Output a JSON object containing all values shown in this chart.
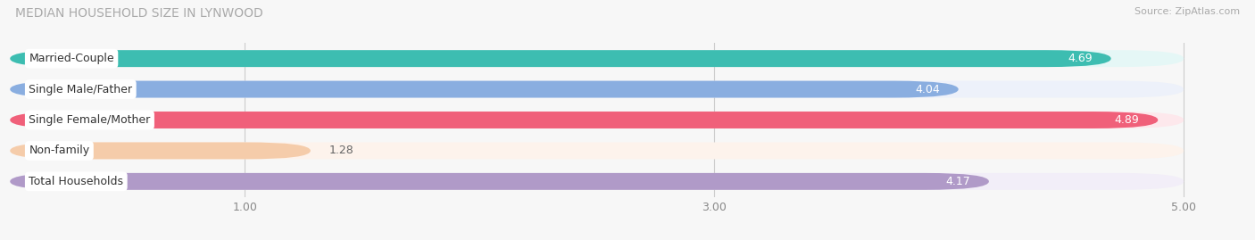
{
  "title": "MEDIAN HOUSEHOLD SIZE IN LYNWOOD",
  "source": "Source: ZipAtlas.com",
  "categories": [
    "Married-Couple",
    "Single Male/Father",
    "Single Female/Mother",
    "Non-family",
    "Total Households"
  ],
  "values": [
    4.69,
    4.04,
    4.89,
    1.28,
    4.17
  ],
  "bar_colors": [
    "#3dbdb1",
    "#8aaee0",
    "#f0607a",
    "#f5ccaa",
    "#b09ac8"
  ],
  "bar_bg_colors": [
    "#e5f7f6",
    "#edf1fa",
    "#fde8ec",
    "#fdf3ec",
    "#f2eef8"
  ],
  "xlim": [
    0,
    5.25
  ],
  "xmin": 0,
  "xmax": 5.0,
  "xticks": [
    1.0,
    3.0,
    5.0
  ],
  "title_fontsize": 10,
  "label_fontsize": 9,
  "value_fontsize": 9,
  "tick_fontsize": 9,
  "background_color": "#f7f7f7"
}
